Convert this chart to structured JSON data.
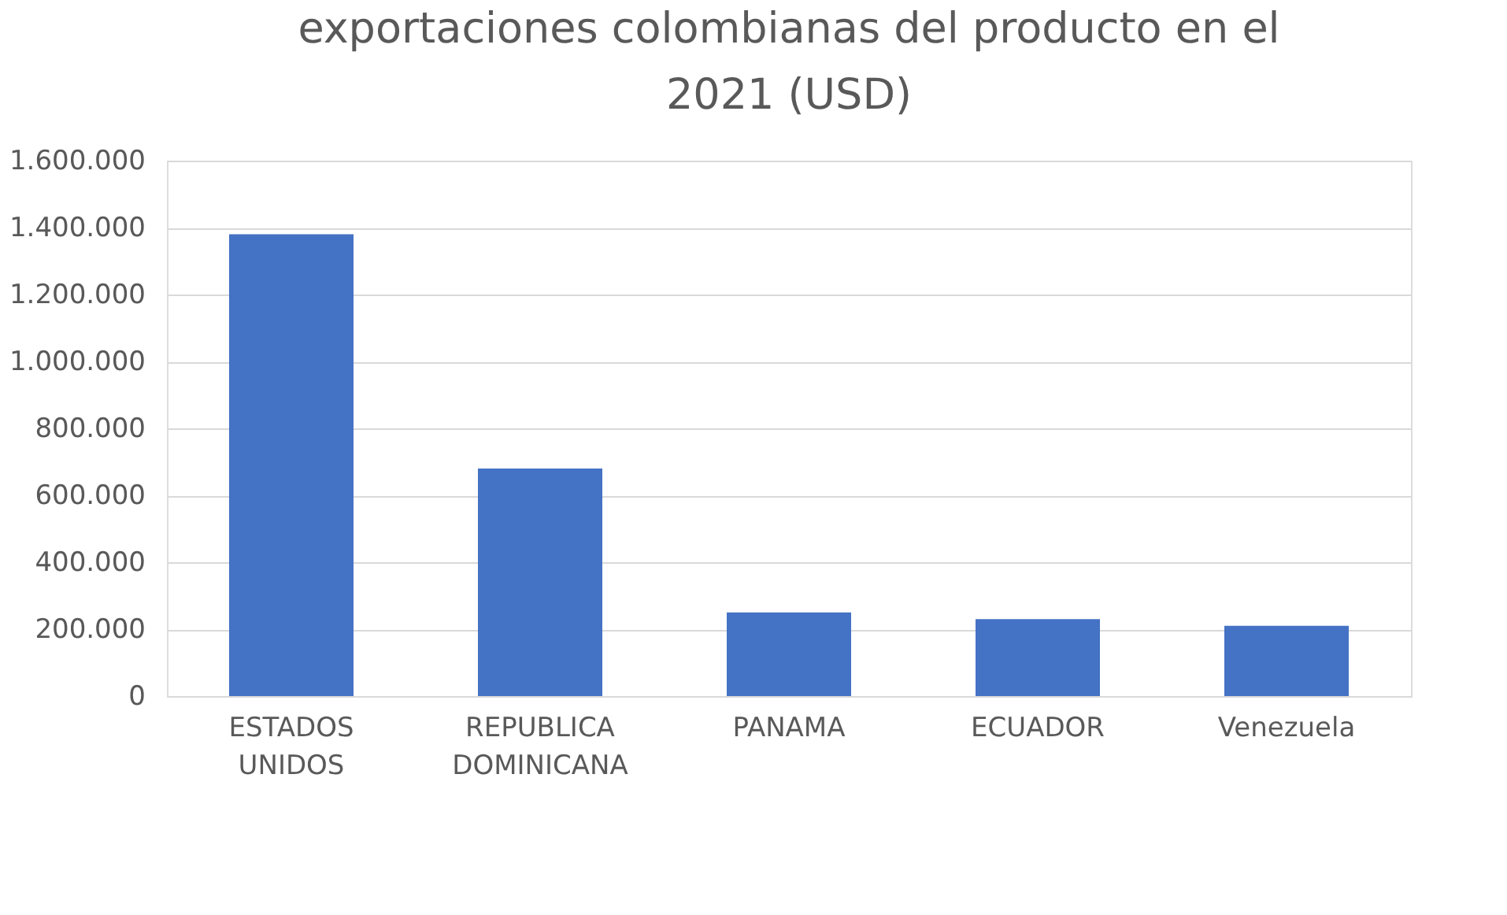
{
  "chart_data": {
    "type": "bar",
    "title": "exportaciones colombianas del producto en el 2021 (USD)",
    "categories": [
      "ESTADOS UNIDOS",
      "REPUBLICA DOMINICANA",
      "PANAMA",
      "ECUADOR",
      "Venezuela"
    ],
    "values": [
      1380000,
      680000,
      250000,
      230000,
      210000
    ],
    "color": "#4472c4",
    "ylim": [
      0,
      1600000
    ],
    "yticks": [
      0,
      {
        "value": 200000,
        "label": "200.000"
      },
      {
        "value": 400000,
        "label": "400.000"
      },
      {
        "value": 600000,
        "label": "600.000"
      },
      {
        "value": 800000,
        "label": "800.000"
      },
      {
        "value": 1000000,
        "label": "1.000.000"
      },
      {
        "value": 1200000,
        "label": "1.200.000"
      },
      {
        "value": 1400000,
        "label": "1.400.000"
      },
      {
        "value": 1600000,
        "label": "1.600.000"
      }
    ],
    "grid": "y"
  }
}
